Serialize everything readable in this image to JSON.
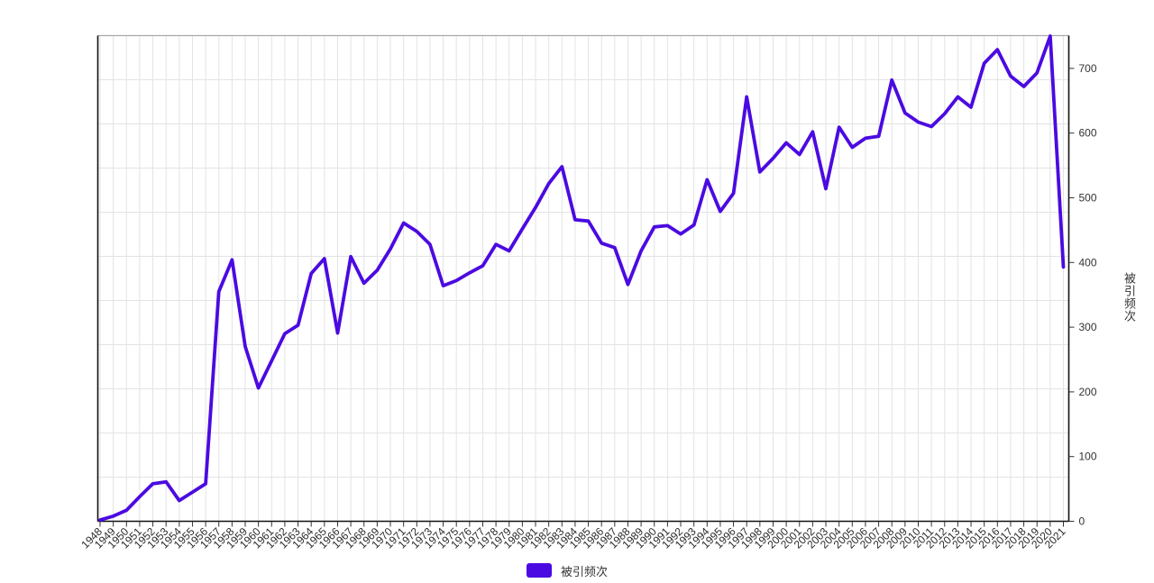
{
  "chart_data": {
    "type": "line",
    "title": "",
    "xlabel": "",
    "ylabel": "被引频次",
    "ylim": [
      0,
      750
    ],
    "y_ticks": [
      0,
      100,
      200,
      300,
      400,
      500,
      600,
      700
    ],
    "grid": true,
    "legend_position": "bottom",
    "categories": [
      1948,
      1949,
      1950,
      1951,
      1952,
      1953,
      1954,
      1955,
      1956,
      1957,
      1958,
      1959,
      1960,
      1961,
      1962,
      1963,
      1964,
      1965,
      1966,
      1967,
      1968,
      1969,
      1970,
      1971,
      1972,
      1973,
      1974,
      1975,
      1976,
      1977,
      1978,
      1979,
      1980,
      1981,
      1982,
      1983,
      1984,
      1985,
      1986,
      1987,
      1988,
      1989,
      1990,
      1991,
      1992,
      1993,
      1994,
      1995,
      1996,
      1997,
      1998,
      1999,
      2000,
      2001,
      2002,
      2003,
      2004,
      2005,
      2006,
      2007,
      2008,
      2009,
      2010,
      2011,
      2012,
      2013,
      2014,
      2015,
      2016,
      2017,
      2018,
      2019,
      2020,
      2021
    ],
    "series": [
      {
        "name": "被引频次",
        "color": "#4B0AE1",
        "values": [
          2,
          8,
          17,
          38,
          58,
          61,
          32,
          45,
          58,
          355,
          404,
          270,
          206,
          248,
          290,
          303,
          383,
          406,
          291,
          409,
          368,
          388,
          421,
          461,
          448,
          428,
          364,
          372,
          384,
          395,
          428,
          418,
          452,
          485,
          522,
          548,
          466,
          464,
          430,
          423,
          366,
          418,
          455,
          457,
          444,
          458,
          528,
          479,
          507,
          656,
          540,
          561,
          585,
          567,
          602,
          514,
          609,
          578,
          592,
          595,
          682,
          631,
          617,
          610,
          630,
          656,
          640,
          708,
          729,
          688,
          672,
          693,
          750,
          393
        ]
      }
    ]
  },
  "legend": {
    "label": "被引频次",
    "swatch_color": "#4B0AE1"
  },
  "axis": {
    "right_name": "被引频次"
  },
  "colors": {
    "line": "#4B0AE1",
    "gridline": "#e3e3e3",
    "top_border": "#aaaaaa",
    "axis": "#111111",
    "tick": "#333333",
    "label_text": "#2a2a2a"
  }
}
